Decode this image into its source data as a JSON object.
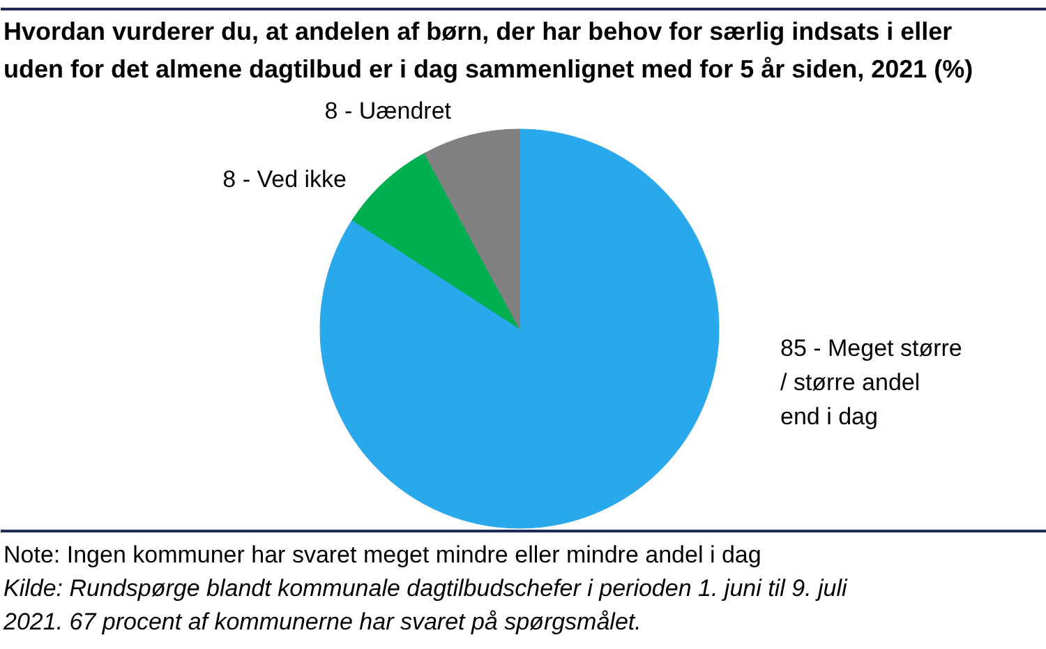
{
  "chart_data": {
    "type": "pie",
    "title": "Hvordan vurderer du, at andelen af børn, der har behov for særlig indsats i eller uden for det almene dagtilbud er i dag sammenlignet med for 5 år siden, 2021 (%)",
    "categories": [
      "85 - Meget større / større andel end i dag",
      "8 - Ved ikke",
      "8 - Uændret"
    ],
    "values": [
      85,
      8,
      8
    ],
    "colors": [
      "#29a8eb",
      "#00b050",
      "#808080"
    ],
    "annotations": [
      "Note: Ingen kommuner har svaret meget mindre eller mindre andel i dag",
      "Kilde: Rundspørge blandt kommunale dagtilbudschefer i perioden 1. juni til 9. juli 2021. 67 procent af kommunerne har svaret på spørgsmålet."
    ]
  }
}
